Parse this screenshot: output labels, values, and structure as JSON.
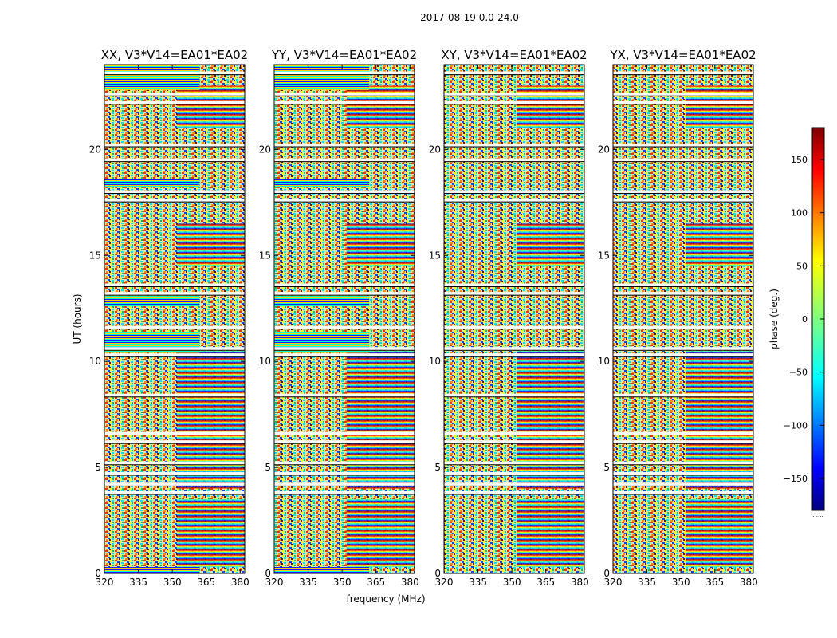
{
  "chart_data": {
    "type": "heatmap",
    "suptitle": "2017-08-19 0.0-24.0",
    "ylabel": "UT (hours)",
    "xlabel": "frequency (MHz)",
    "xlim": [
      320,
      382
    ],
    "ylim": [
      0,
      24
    ],
    "xticks": [
      "320",
      "335",
      "350",
      "365",
      "380"
    ],
    "yticks": [
      "0",
      "5",
      "10",
      "15",
      "20"
    ],
    "panels": [
      {
        "title": "XX, V3*V14=EA01*EA02"
      },
      {
        "title": "YY, V3*V14=EA01*EA02"
      },
      {
        "title": "XY, V3*V14=EA01*EA02"
      },
      {
        "title": "YX, V3*V14=EA01*EA02"
      }
    ],
    "colorbar": {
      "label": "phase (deg.)",
      "range": [
        -180,
        180
      ],
      "ticks": [
        "150",
        "100",
        "50",
        "0",
        "−50",
        "−100",
        "−150"
      ],
      "colormap": "jet",
      "footnote": "......"
    },
    "flagged_rows_hours": [
      23.6,
      22.6,
      22.2,
      20.2,
      19.5,
      18.0,
      17.6,
      13.6,
      13.2,
      11.6,
      10.6,
      10.3,
      8.4,
      6.6,
      6.2,
      5.2,
      4.7,
      4.2,
      3.8
    ]
  }
}
